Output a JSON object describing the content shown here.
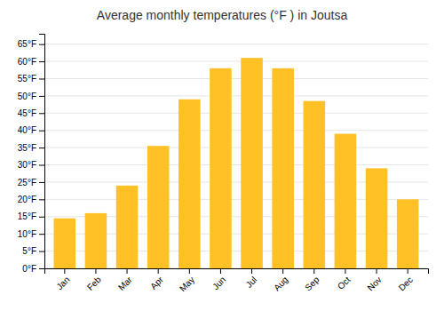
{
  "chart_data": {
    "type": "bar",
    "title": "Average monthly temperatures (°F ) in Joutsa",
    "categories": [
      "Jan",
      "Feb",
      "Mar",
      "Apr",
      "May",
      "Jun",
      "Jul",
      "Aug",
      "Sep",
      "Oct",
      "Nov",
      "Dec"
    ],
    "values": [
      14.5,
      16.0,
      24.0,
      35.5,
      49.0,
      58.0,
      61.0,
      58.0,
      48.5,
      39.0,
      29.0,
      20.0
    ],
    "color": "#FFC125",
    "ylim": [
      0,
      68
    ],
    "yticks": [
      {
        "value": 0,
        "label": "0°F"
      },
      {
        "value": 5,
        "label": "5°F"
      },
      {
        "value": 10,
        "label": "10°F"
      },
      {
        "value": 15,
        "label": "15°F"
      },
      {
        "value": 20,
        "label": "20°F"
      },
      {
        "value": 25,
        "label": "25°F"
      },
      {
        "value": 30,
        "label": "30°F"
      },
      {
        "value": 35,
        "label": "35°F"
      },
      {
        "value": 40,
        "label": "40°F"
      },
      {
        "value": 45,
        "label": "45°F"
      },
      {
        "value": 50,
        "label": "50°F"
      },
      {
        "value": 55,
        "label": "55°F"
      },
      {
        "value": 60,
        "label": "60°F"
      },
      {
        "value": 65,
        "label": "65°F"
      }
    ],
    "grid": true
  }
}
